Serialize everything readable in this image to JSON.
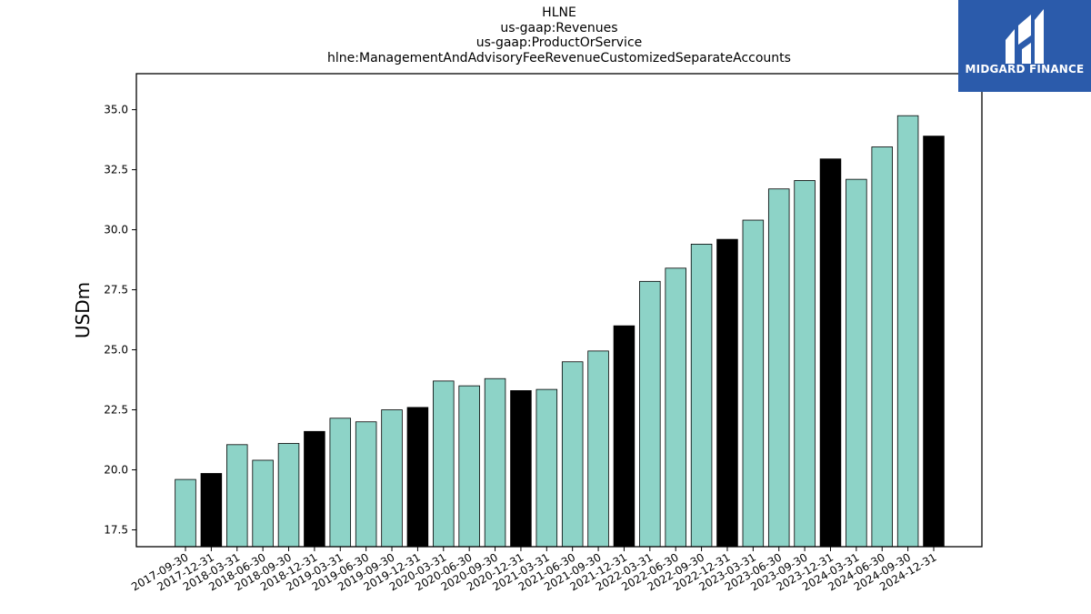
{
  "chart_data": {
    "type": "bar",
    "title": [
      "HLNE",
      "us-gaap:Revenues",
      "us-gaap:ProductOrService",
      "hlne:ManagementAndAdvisoryFeeRevenueCustomizedSeparateAccounts"
    ],
    "ylabel": "USDm",
    "xlabel": "",
    "ylim": [
      16.8,
      36.5
    ],
    "yticks": [
      17.5,
      20.0,
      22.5,
      25.0,
      27.5,
      30.0,
      32.5,
      35.0
    ],
    "grid": false,
    "colors": {
      "quarter": "#8dd3c7",
      "year_end": "#000000",
      "edge": "#000000"
    },
    "categories": [
      "2017-09-30",
      "2017-12-31",
      "2018-03-31",
      "2018-06-30",
      "2018-09-30",
      "2018-12-31",
      "2019-03-31",
      "2019-06-30",
      "2019-09-30",
      "2019-12-31",
      "2020-03-31",
      "2020-06-30",
      "2020-09-30",
      "2020-12-31",
      "2021-03-31",
      "2021-06-30",
      "2021-09-30",
      "2021-12-31",
      "2022-03-31",
      "2022-06-30",
      "2022-09-30",
      "2022-12-31",
      "2023-03-31",
      "2023-06-30",
      "2023-09-30",
      "2023-12-31",
      "2024-03-31",
      "2024-06-30",
      "2024-09-30",
      "2024-12-31"
    ],
    "values": [
      19.6,
      19.85,
      21.05,
      20.4,
      21.1,
      21.6,
      22.15,
      22.0,
      22.5,
      22.6,
      23.7,
      23.5,
      23.8,
      23.3,
      23.35,
      24.5,
      24.95,
      26.0,
      27.85,
      28.4,
      29.4,
      29.6,
      30.4,
      31.7,
      32.05,
      32.95,
      32.1,
      33.45,
      34.75,
      33.9
    ]
  },
  "logo": {
    "text": "MIDGARD FINANCE",
    "background": "#2b5bab"
  }
}
